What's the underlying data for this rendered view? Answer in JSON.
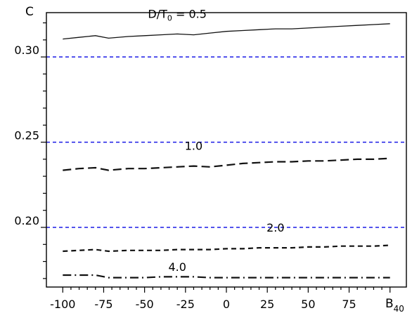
{
  "chart_data": {
    "type": "line",
    "xlabel": "B",
    "xlabel_sub": "40",
    "ylabel": "C",
    "xlim": [
      -110,
      110
    ],
    "ylim": [
      0.165,
      0.326
    ],
    "x_ticks": [
      -100,
      -75,
      -50,
      -25,
      0,
      25,
      50,
      75
    ],
    "x_tick_labels": [
      "-100",
      "-75",
      "-50",
      "-25",
      "0",
      "25",
      "50",
      "75"
    ],
    "y_major_ticks": [
      0.2,
      0.25,
      0.3
    ],
    "y_tick_labels": [
      "0.20",
      "0.25",
      "0.30"
    ],
    "reference_lines": [
      {
        "y": 0.2,
        "color": "#1a1ae6",
        "style": "dashed"
      },
      {
        "y": 0.25,
        "color": "#1a1ae6",
        "style": "dashed"
      },
      {
        "y": 0.3,
        "color": "#1a1ae6",
        "style": "dashed"
      }
    ],
    "x": [
      -100,
      -90,
      -80,
      -72,
      -60,
      -50,
      -40,
      -30,
      -20,
      -10,
      0,
      10,
      20,
      30,
      40,
      50,
      60,
      70,
      80,
      90,
      100
    ],
    "series": [
      {
        "name": "D/T₀ = 0.5",
        "label_parts": {
          "pre": "D/T",
          "sub": "0",
          "post": " = 0.5"
        },
        "style": "solid",
        "values": [
          0.3105,
          0.3115,
          0.3125,
          0.311,
          0.312,
          0.3125,
          0.313,
          0.3135,
          0.313,
          0.314,
          0.315,
          0.3155,
          0.316,
          0.3165,
          0.3165,
          0.317,
          0.3175,
          0.318,
          0.3185,
          0.319,
          0.3195
        ]
      },
      {
        "name": "1.0",
        "label_parts": {
          "pre": "",
          "sub": "",
          "post": "1.0"
        },
        "style": "dashed",
        "values": [
          0.2335,
          0.2345,
          0.235,
          0.2335,
          0.2345,
          0.2345,
          0.235,
          0.2355,
          0.236,
          0.2355,
          0.2365,
          0.2375,
          0.238,
          0.2385,
          0.2385,
          0.239,
          0.239,
          0.2395,
          0.24,
          0.24,
          0.2405
        ]
      },
      {
        "name": "2.0",
        "label_parts": {
          "pre": "",
          "sub": "",
          "post": "2.0"
        },
        "style": "short-dash",
        "values": [
          0.186,
          0.1865,
          0.187,
          0.186,
          0.1865,
          0.1865,
          0.1865,
          0.187,
          0.187,
          0.187,
          0.1875,
          0.1875,
          0.188,
          0.188,
          0.188,
          0.1885,
          0.1885,
          0.189,
          0.189,
          0.189,
          0.1895
        ]
      },
      {
        "name": "4.0",
        "label_parts": {
          "pre": "",
          "sub": "",
          "post": "4.0"
        },
        "style": "dash-dot",
        "values": [
          0.172,
          0.172,
          0.172,
          0.1705,
          0.1705,
          0.1705,
          0.171,
          0.171,
          0.171,
          0.1705,
          0.1705,
          0.1705,
          0.1705,
          0.1705,
          0.1705,
          0.1705,
          0.1705,
          0.1705,
          0.1705,
          0.1705,
          0.1705
        ]
      }
    ],
    "grid": false,
    "legend": "inline labels"
  }
}
